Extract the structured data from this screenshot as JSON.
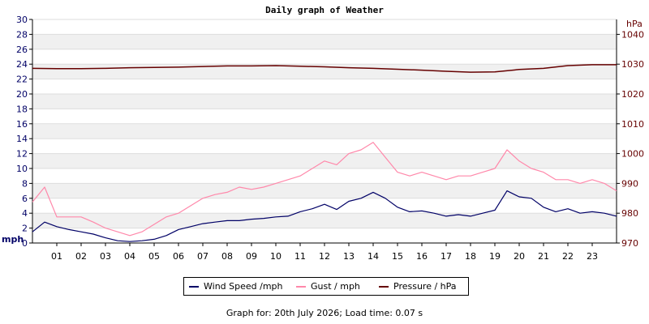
{
  "title": "Daily graph of Weather",
  "footer": "Graph for: 20th July 2026; Load time: 0.07 s",
  "legend": [
    {
      "label": "Wind Speed /mph",
      "color": "#000066"
    },
    {
      "label": "Gust / mph",
      "color": "#ff88aa"
    },
    {
      "label": "Pressure / hPa",
      "color": "#660000"
    }
  ],
  "chart_data": {
    "type": "line",
    "title": "Daily graph of Weather",
    "x_ticks": [
      "01",
      "02",
      "03",
      "04",
      "05",
      "06",
      "07",
      "08",
      "09",
      "10",
      "11",
      "12",
      "13",
      "14",
      "15",
      "16",
      "17",
      "18",
      "19",
      "20",
      "21",
      "22",
      "23"
    ],
    "xlim": [
      0,
      24
    ],
    "y_left": {
      "label": "mph",
      "lim": [
        0,
        30
      ],
      "ticks": [
        0,
        2,
        4,
        6,
        8,
        10,
        12,
        14,
        16,
        18,
        20,
        22,
        24,
        26,
        28,
        30
      ],
      "color": "#000066"
    },
    "y_right": {
      "label": "hPa",
      "lim": [
        970,
        1045
      ],
      "ticks": [
        970,
        980,
        990,
        1000,
        1010,
        1020,
        1030,
        1040
      ],
      "color": "#660000"
    },
    "grid": "horizontal bands",
    "legend_position": "bottom-center",
    "series": [
      {
        "name": "Wind Speed /mph",
        "color": "#000066",
        "axis": "left",
        "x": [
          0,
          0.5,
          1,
          1.5,
          2,
          2.5,
          3,
          3.5,
          4,
          4.5,
          5,
          5.5,
          6,
          6.5,
          7,
          7.5,
          8,
          8.5,
          9,
          9.5,
          10,
          10.5,
          11,
          11.5,
          12,
          12.5,
          13,
          13.5,
          14,
          14.5,
          15,
          15.5,
          16,
          16.5,
          17,
          17.5,
          18,
          18.5,
          19,
          19.5,
          20,
          20.5,
          21,
          21.5,
          22,
          22.5,
          23,
          23.5,
          24
        ],
        "y": [
          1.5,
          2.8,
          2.2,
          1.8,
          1.5,
          1.2,
          0.7,
          0.3,
          0.2,
          0.3,
          0.5,
          1.0,
          1.8,
          2.2,
          2.6,
          2.8,
          3.0,
          3.0,
          3.2,
          3.3,
          3.5,
          3.6,
          4.2,
          4.6,
          5.2,
          4.5,
          5.6,
          6.0,
          6.8,
          6.0,
          4.8,
          4.2,
          4.3,
          4.0,
          3.6,
          3.8,
          3.6,
          4.0,
          4.4,
          7.0,
          6.2,
          6.0,
          4.8,
          4.2,
          4.6,
          4.0,
          4.2,
          4.0,
          3.6
        ]
      },
      {
        "name": "Gust / mph",
        "color": "#ff88aa",
        "axis": "left",
        "x": [
          0,
          0.5,
          1,
          1.5,
          2,
          2.5,
          3,
          3.5,
          4,
          4.5,
          5,
          5.5,
          6,
          6.5,
          7,
          7.5,
          8,
          8.5,
          9,
          9.5,
          10,
          10.5,
          11,
          11.5,
          12,
          12.5,
          13,
          13.5,
          14,
          14.5,
          15,
          15.5,
          16,
          16.5,
          17,
          17.5,
          18,
          18.5,
          19,
          19.5,
          20,
          20.5,
          21,
          21.5,
          22,
          22.5,
          23,
          23.5,
          24
        ],
        "y": [
          5.5,
          7.5,
          3.5,
          3.5,
          3.5,
          2.8,
          2.0,
          1.5,
          1.0,
          1.5,
          2.5,
          3.5,
          4.0,
          5.0,
          6.0,
          6.5,
          6.8,
          7.5,
          7.2,
          7.5,
          8.0,
          8.5,
          9.0,
          10.0,
          11.0,
          10.5,
          12.0,
          12.5,
          13.5,
          11.5,
          9.5,
          9.0,
          9.5,
          9.0,
          8.5,
          9.0,
          9.0,
          9.5,
          10.0,
          12.5,
          11.0,
          10.0,
          9.5,
          8.5,
          8.5,
          8.0,
          8.5,
          8.0,
          7.0
        ]
      },
      {
        "name": "Pressure / hPa",
        "color": "#660000",
        "axis": "right",
        "x": [
          0,
          1,
          2,
          3,
          4,
          5,
          6,
          7,
          8,
          9,
          10,
          11,
          12,
          13,
          14,
          15,
          16,
          17,
          18,
          19,
          20,
          21,
          22,
          23,
          24
        ],
        "y": [
          1028.6,
          1028.5,
          1028.5,
          1028.6,
          1028.8,
          1028.9,
          1029.0,
          1029.2,
          1029.4,
          1029.4,
          1029.5,
          1029.3,
          1029.1,
          1028.8,
          1028.6,
          1028.3,
          1028.0,
          1027.6,
          1027.3,
          1027.4,
          1028.2,
          1028.6,
          1029.5,
          1029.8,
          1029.8
        ]
      }
    ]
  }
}
